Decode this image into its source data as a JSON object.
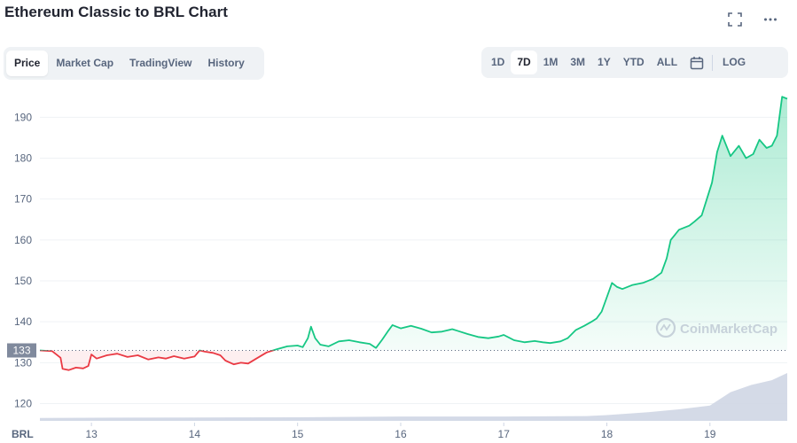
{
  "page": {
    "title": "Ethereum Classic to BRL Chart"
  },
  "header_icons": [
    "fullscreen-icon",
    "more-icon"
  ],
  "tabs": [
    {
      "label": "Price",
      "active": true
    },
    {
      "label": "Market Cap",
      "active": false
    },
    {
      "label": "TradingView",
      "active": false
    },
    {
      "label": "History",
      "active": false
    }
  ],
  "ranges": [
    {
      "label": "1D",
      "active": false
    },
    {
      "label": "7D",
      "active": true
    },
    {
      "label": "1M",
      "active": false
    },
    {
      "label": "3M",
      "active": false
    },
    {
      "label": "1Y",
      "active": false
    },
    {
      "label": "YTD",
      "active": false
    },
    {
      "label": "ALL",
      "active": false
    }
  ],
  "log_label": "LOG",
  "chart_data": {
    "type": "line",
    "currency_label": "BRL",
    "watermark": "CoinMarketCap",
    "baseline": 133,
    "baseline_label": "133",
    "ylim": [
      116,
      197
    ],
    "yticks": [
      120,
      130,
      140,
      150,
      160,
      170,
      180,
      190
    ],
    "xlim": [
      12.5,
      19.75
    ],
    "xticks": [
      {
        "value": 13,
        "label": "13"
      },
      {
        "value": 14,
        "label": "14"
      },
      {
        "value": 15,
        "label": "15"
      },
      {
        "value": 16,
        "label": "16"
      },
      {
        "value": 17,
        "label": "17"
      },
      {
        "value": 18,
        "label": "18"
      },
      {
        "value": 19,
        "label": "19"
      }
    ],
    "grid": true,
    "colors": {
      "up": "#16c784",
      "down": "#ea3943",
      "volume": "#cfd6e4",
      "grid": "#eff2f5",
      "axis_text": "#58667e"
    },
    "price": [
      [
        12.5,
        133.0
      ],
      [
        12.62,
        132.8
      ],
      [
        12.7,
        131.2
      ],
      [
        12.72,
        128.5
      ],
      [
        12.78,
        128.2
      ],
      [
        12.85,
        128.8
      ],
      [
        12.92,
        128.6
      ],
      [
        12.97,
        129.2
      ],
      [
        13.0,
        132.0
      ],
      [
        13.05,
        131.0
      ],
      [
        13.15,
        131.8
      ],
      [
        13.25,
        132.2
      ],
      [
        13.35,
        131.4
      ],
      [
        13.45,
        131.8
      ],
      [
        13.55,
        130.8
      ],
      [
        13.65,
        131.3
      ],
      [
        13.72,
        131.0
      ],
      [
        13.8,
        131.6
      ],
      [
        13.9,
        131.0
      ],
      [
        14.0,
        131.5
      ],
      [
        14.05,
        133.0
      ],
      [
        14.1,
        132.7
      ],
      [
        14.18,
        132.4
      ],
      [
        14.25,
        131.8
      ],
      [
        14.3,
        130.5
      ],
      [
        14.38,
        129.6
      ],
      [
        14.45,
        130.0
      ],
      [
        14.52,
        129.8
      ],
      [
        14.6,
        131.0
      ],
      [
        14.7,
        132.5
      ],
      [
        14.8,
        133.3
      ],
      [
        14.9,
        134.0
      ],
      [
        15.0,
        134.2
      ],
      [
        15.05,
        133.8
      ],
      [
        15.1,
        136.0
      ],
      [
        15.13,
        138.8
      ],
      [
        15.17,
        136.0
      ],
      [
        15.22,
        134.4
      ],
      [
        15.3,
        134.0
      ],
      [
        15.4,
        135.2
      ],
      [
        15.5,
        135.5
      ],
      [
        15.6,
        135.0
      ],
      [
        15.7,
        134.6
      ],
      [
        15.76,
        133.6
      ],
      [
        15.82,
        135.6
      ],
      [
        15.88,
        137.8
      ],
      [
        15.92,
        139.2
      ],
      [
        16.0,
        138.4
      ],
      [
        16.1,
        139.0
      ],
      [
        16.2,
        138.3
      ],
      [
        16.3,
        137.4
      ],
      [
        16.4,
        137.6
      ],
      [
        16.5,
        138.2
      ],
      [
        16.55,
        137.8
      ],
      [
        16.65,
        137.0
      ],
      [
        16.75,
        136.3
      ],
      [
        16.85,
        136.0
      ],
      [
        16.95,
        136.4
      ],
      [
        17.0,
        136.8
      ],
      [
        17.1,
        135.5
      ],
      [
        17.2,
        135.0
      ],
      [
        17.3,
        135.3
      ],
      [
        17.38,
        135.0
      ],
      [
        17.45,
        134.8
      ],
      [
        17.55,
        135.2
      ],
      [
        17.62,
        136.0
      ],
      [
        17.7,
        138.0
      ],
      [
        17.78,
        139.0
      ],
      [
        17.85,
        140.0
      ],
      [
        17.9,
        140.8
      ],
      [
        17.95,
        142.5
      ],
      [
        18.0,
        146.0
      ],
      [
        18.05,
        149.5
      ],
      [
        18.1,
        148.5
      ],
      [
        18.15,
        148.0
      ],
      [
        18.25,
        149.0
      ],
      [
        18.35,
        149.5
      ],
      [
        18.45,
        150.5
      ],
      [
        18.53,
        152.0
      ],
      [
        18.58,
        155.5
      ],
      [
        18.62,
        160.0
      ],
      [
        18.7,
        162.5
      ],
      [
        18.8,
        163.5
      ],
      [
        18.85,
        164.5
      ],
      [
        18.92,
        166.0
      ],
      [
        18.97,
        170.0
      ],
      [
        19.02,
        174.0
      ],
      [
        19.07,
        181.5
      ],
      [
        19.12,
        185.5
      ],
      [
        19.2,
        180.5
      ],
      [
        19.28,
        183.0
      ],
      [
        19.35,
        180.0
      ],
      [
        19.42,
        181.0
      ],
      [
        19.48,
        184.5
      ],
      [
        19.55,
        182.5
      ],
      [
        19.6,
        183.0
      ],
      [
        19.65,
        185.5
      ],
      [
        19.7,
        195.0
      ],
      [
        19.75,
        194.5
      ]
    ],
    "volume": [
      [
        12.5,
        0.06
      ],
      [
        13.0,
        0.065
      ],
      [
        14.0,
        0.07
      ],
      [
        15.0,
        0.075
      ],
      [
        16.0,
        0.09
      ],
      [
        17.0,
        0.09
      ],
      [
        17.8,
        0.1
      ],
      [
        18.0,
        0.12
      ],
      [
        18.4,
        0.18
      ],
      [
        18.7,
        0.24
      ],
      [
        19.0,
        0.32
      ],
      [
        19.2,
        0.6
      ],
      [
        19.4,
        0.75
      ],
      [
        19.6,
        0.85
      ],
      [
        19.75,
        1.0
      ]
    ]
  }
}
